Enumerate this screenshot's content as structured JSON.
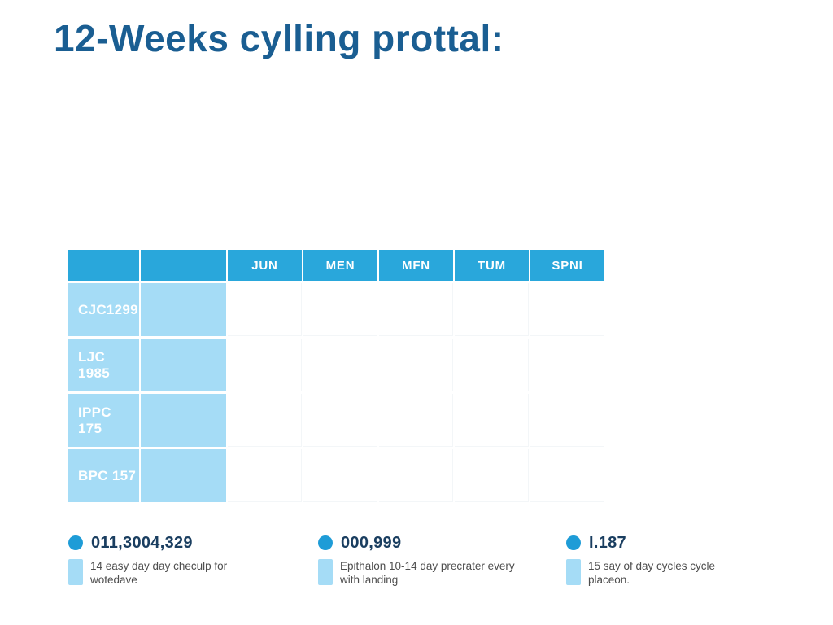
{
  "title": "12-Weeks cylling prottal:",
  "table": {
    "columns": [
      "",
      "",
      "JUN",
      "MEN",
      "MFN",
      "TUM",
      "SPNI"
    ],
    "rows": [
      {
        "label": "CJC1299"
      },
      {
        "label": "LJC 1985"
      },
      {
        "label": "IPPC 175"
      },
      {
        "label": "BPC 157"
      }
    ]
  },
  "legend": [
    {
      "value": "011,3004,329",
      "description": "14 easy day day checulp for wotedave"
    },
    {
      "value": "000,999",
      "description": "Epithalon 10-14 day precrater every with landing"
    },
    {
      "value": "I.187",
      "description": "15 say of day cycles cycle placeon."
    }
  ],
  "colors": {
    "header_blue": "#29A7DB",
    "cell_light_blue": "#A5DCF6",
    "title_blue": "#1A5E92",
    "legend_value_navy": "#1A3E60",
    "legend_bullet_blue": "#1E9CD7",
    "description_gray": "#4E4E4E"
  }
}
